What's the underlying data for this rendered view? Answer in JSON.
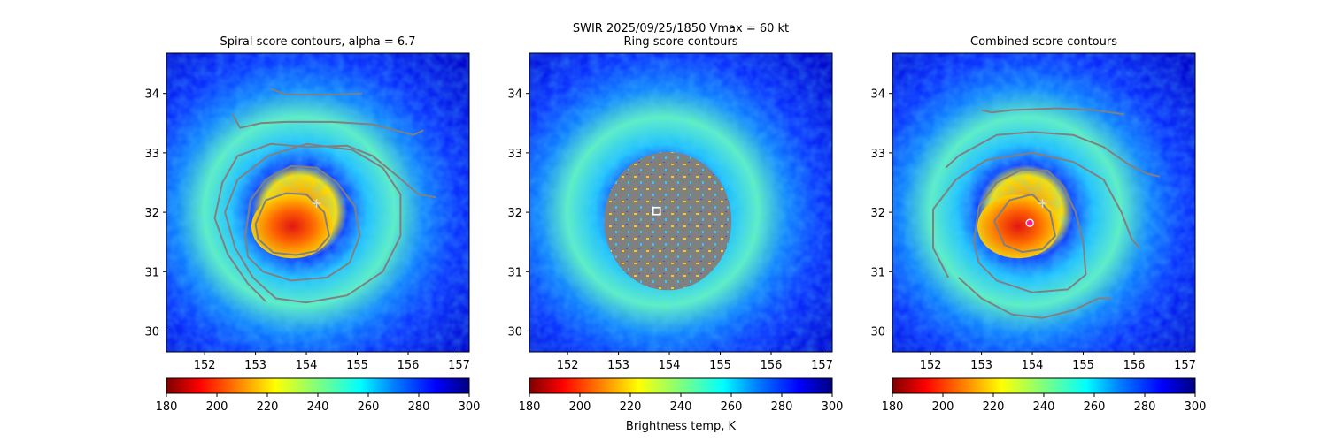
{
  "suptitle": {
    "line1": "SWIR  2025/09/25/1850    Vmax = 60 kt"
  },
  "colors": {
    "contour": "#808080",
    "ring_mask": "#808080",
    "marker_plus": "#dcdcdc",
    "marker_square": "#ffffff",
    "center_dot": "#ff1f8f"
  },
  "colorbar": {
    "label": "Brightness temp, K",
    "colormap": "jet_r",
    "range": [
      180,
      300
    ],
    "ticks": [
      "180",
      "200",
      "220",
      "240",
      "260",
      "280",
      "300"
    ]
  },
  "chart_data": [
    {
      "type": "heatmap",
      "title": "Spiral score contours, alpha =  6.7",
      "xlim": [
        151.25,
        157.2
      ],
      "ylim": [
        29.65,
        34.68
      ],
      "xticks": [
        "152",
        "153",
        "154",
        "155",
        "156",
        "157"
      ],
      "yticks": [
        "30",
        "31",
        "32",
        "33",
        "34"
      ],
      "field": "brightness temperature (K), hurricane warm core near 153.7E, 31.75N",
      "overlay": "spiral score contours",
      "markers": [
        {
          "kind": "plus",
          "lon": 154.2,
          "lat": 32.15
        }
      ],
      "contours": [
        [
          [
            153.0,
            31.8
          ],
          [
            153.2,
            32.2
          ],
          [
            153.6,
            32.32
          ],
          [
            154.0,
            32.3
          ],
          [
            154.35,
            32.0
          ],
          [
            154.45,
            31.6
          ],
          [
            154.2,
            31.35
          ],
          [
            153.8,
            31.28
          ],
          [
            153.35,
            31.32
          ],
          [
            153.05,
            31.55
          ],
          [
            153.0,
            31.8
          ]
        ],
        [
          [
            152.8,
            31.6
          ],
          [
            152.9,
            32.2
          ],
          [
            153.2,
            32.55
          ],
          [
            153.7,
            32.78
          ],
          [
            154.2,
            32.75
          ],
          [
            154.6,
            32.5
          ],
          [
            154.95,
            32.1
          ],
          [
            155.05,
            31.6
          ],
          [
            154.85,
            31.15
          ],
          [
            154.4,
            30.9
          ],
          [
            153.7,
            30.85
          ],
          [
            153.15,
            31.0
          ],
          [
            152.85,
            31.25
          ],
          [
            152.8,
            31.6
          ]
        ],
        [
          [
            153.4,
            30.55
          ],
          [
            152.95,
            30.9
          ],
          [
            152.6,
            31.4
          ],
          [
            152.4,
            32.0
          ],
          [
            152.65,
            32.55
          ],
          [
            153.25,
            32.95
          ],
          [
            154.0,
            33.15
          ],
          [
            154.9,
            33.05
          ],
          [
            155.5,
            32.75
          ],
          [
            155.85,
            32.3
          ],
          [
            155.85,
            31.6
          ],
          [
            155.5,
            31.0
          ],
          [
            154.8,
            30.6
          ],
          [
            154.0,
            30.48
          ],
          [
            153.4,
            30.55
          ]
        ],
        [
          [
            154.0,
            33.1
          ],
          [
            154.8,
            33.12
          ],
          [
            155.3,
            32.95
          ],
          [
            155.8,
            32.6
          ],
          [
            156.2,
            32.3
          ],
          [
            156.55,
            32.25
          ]
        ],
        [
          [
            153.2,
            30.5
          ],
          [
            152.85,
            30.8
          ],
          [
            152.45,
            31.3
          ],
          [
            152.2,
            31.9
          ],
          [
            152.35,
            32.5
          ],
          [
            152.65,
            32.95
          ],
          [
            153.3,
            33.15
          ],
          [
            154.0,
            33.1
          ]
        ],
        [
          [
            152.55,
            33.65
          ],
          [
            152.7,
            33.42
          ],
          [
            153.1,
            33.5
          ],
          [
            153.6,
            33.52
          ],
          [
            154.5,
            33.52
          ],
          [
            155.3,
            33.48
          ],
          [
            156.1,
            33.3
          ],
          [
            156.3,
            33.38
          ]
        ],
        [
          [
            153.3,
            34.08
          ],
          [
            153.6,
            33.98
          ],
          [
            154.5,
            33.98
          ],
          [
            155.1,
            34.0
          ]
        ]
      ]
    },
    {
      "type": "heatmap",
      "title": "Ring score contours",
      "xlim": [
        151.25,
        157.2
      ],
      "ylim": [
        29.65,
        34.68
      ],
      "xticks": [
        "152",
        "153",
        "154",
        "155",
        "156",
        "157"
      ],
      "yticks": [
        "30",
        "31",
        "32",
        "33",
        "34"
      ],
      "field": "brightness temperature (K)",
      "overlay": "ring score contours (dense mask around center)",
      "ring_center": {
        "lon": 153.97,
        "lat": 31.85,
        "radius_deg": 1.25
      },
      "markers": [
        {
          "kind": "square",
          "lon": 153.75,
          "lat": 32.02
        }
      ]
    },
    {
      "type": "heatmap",
      "title": "Combined score contours",
      "xlim": [
        151.25,
        157.2
      ],
      "ylim": [
        29.65,
        34.68
      ],
      "xticks": [
        "152",
        "153",
        "154",
        "155",
        "156",
        "157"
      ],
      "yticks": [
        "30",
        "31",
        "32",
        "33",
        "34"
      ],
      "field": "brightness temperature (K)",
      "overlay": "combined score contours",
      "markers": [
        {
          "kind": "plus",
          "lon": 154.2,
          "lat": 32.15
        },
        {
          "kind": "dot",
          "lon": 153.95,
          "lat": 31.82
        }
      ],
      "contours": [
        [
          [
            153.25,
            31.85
          ],
          [
            153.55,
            32.2
          ],
          [
            154.0,
            32.3
          ],
          [
            154.35,
            32.0
          ],
          [
            154.45,
            31.6
          ],
          [
            154.2,
            31.38
          ],
          [
            153.8,
            31.33
          ],
          [
            153.45,
            31.45
          ],
          [
            153.25,
            31.85
          ]
        ],
        [
          [
            152.85,
            31.5
          ],
          [
            152.95,
            32.1
          ],
          [
            153.3,
            32.5
          ],
          [
            153.8,
            32.72
          ],
          [
            154.3,
            32.7
          ],
          [
            154.6,
            32.45
          ],
          [
            154.85,
            32.0
          ],
          [
            155.0,
            31.5
          ],
          [
            155.05,
            30.95
          ],
          [
            154.7,
            30.7
          ],
          [
            154.0,
            30.65
          ],
          [
            153.3,
            30.85
          ],
          [
            152.95,
            31.15
          ],
          [
            152.85,
            31.5
          ]
        ],
        [
          [
            152.35,
            30.9
          ],
          [
            152.05,
            31.4
          ],
          [
            152.05,
            32.05
          ],
          [
            152.5,
            32.55
          ],
          [
            153.1,
            32.88
          ],
          [
            154.0,
            33.0
          ],
          [
            154.8,
            32.85
          ],
          [
            155.4,
            32.55
          ],
          [
            155.75,
            32.0
          ],
          [
            155.95,
            31.55
          ],
          [
            156.1,
            31.4
          ]
        ],
        [
          [
            152.55,
            30.9
          ],
          [
            153.0,
            30.55
          ],
          [
            153.6,
            30.28
          ],
          [
            154.2,
            30.22
          ],
          [
            154.8,
            30.35
          ],
          [
            155.3,
            30.55
          ],
          [
            155.55,
            30.55
          ]
        ],
        [
          [
            152.3,
            32.75
          ],
          [
            152.55,
            32.95
          ],
          [
            153.3,
            33.3
          ],
          [
            154.0,
            33.35
          ],
          [
            154.8,
            33.3
          ],
          [
            155.4,
            33.1
          ],
          [
            155.9,
            32.8
          ],
          [
            156.25,
            32.65
          ],
          [
            156.5,
            32.6
          ]
        ],
        [
          [
            153.0,
            33.72
          ],
          [
            153.2,
            33.68
          ],
          [
            153.6,
            33.72
          ],
          [
            154.5,
            33.75
          ],
          [
            155.2,
            33.72
          ],
          [
            155.8,
            33.65
          ]
        ]
      ]
    }
  ]
}
